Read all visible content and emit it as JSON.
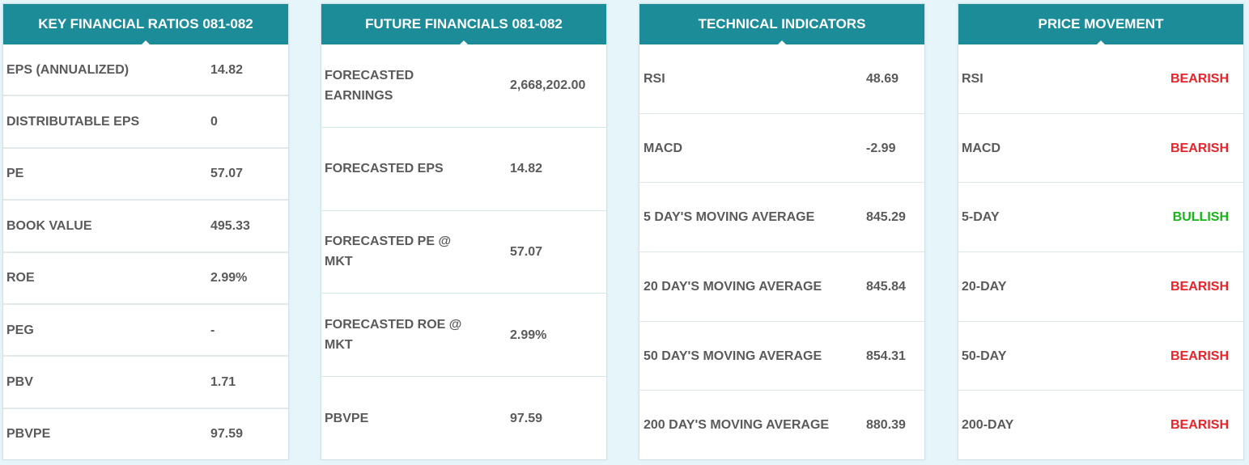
{
  "key_ratios": {
    "title": "KEY FINANCIAL RATIOS 081-082",
    "rows": [
      {
        "label": "EPS (ANNUALIZED)",
        "value": "14.82"
      },
      {
        "label": "DISTRIBUTABLE EPS",
        "value": "0"
      },
      {
        "label": "PE",
        "value": "57.07"
      },
      {
        "label": "BOOK VALUE",
        "value": "495.33"
      },
      {
        "label": "ROE",
        "value": "2.99%"
      },
      {
        "label": "PEG",
        "value": "-"
      },
      {
        "label": "PBV",
        "value": "1.71"
      },
      {
        "label": "PBVPE",
        "value": "97.59"
      }
    ]
  },
  "future_financials": {
    "title": "FUTURE FINANCIALS 081-082",
    "rows": [
      {
        "label": "FORECASTED EARNINGS",
        "value": "2,668,202.00"
      },
      {
        "label": "FORECASTED EPS",
        "value": "14.82"
      },
      {
        "label": "FORECASTED PE @ MKT",
        "value": "57.07"
      },
      {
        "label": "FORECASTED ROE @ MKT",
        "value": "2.99%"
      },
      {
        "label": "PBVPE",
        "value": "97.59"
      }
    ]
  },
  "technical_indicators": {
    "title": "TECHNICAL INDICATORS",
    "rows": [
      {
        "label": "RSI",
        "value": "48.69"
      },
      {
        "label": "MACD",
        "value": "-2.99"
      },
      {
        "label": "5 DAY'S MOVING AVERAGE",
        "value": "845.29"
      },
      {
        "label": "20 DAY'S MOVING AVERAGE",
        "value": "845.84"
      },
      {
        "label": "50 DAY'S MOVING AVERAGE",
        "value": "854.31"
      },
      {
        "label": "200 DAY'S MOVING AVERAGE",
        "value": "880.39"
      }
    ]
  },
  "price_movement": {
    "title": "PRICE MOVEMENT",
    "rows": [
      {
        "label": "RSI",
        "value": "BEARISH"
      },
      {
        "label": "MACD",
        "value": "BEARISH"
      },
      {
        "label": "5-DAY",
        "value": "BULLISH"
      },
      {
        "label": "20-DAY",
        "value": "BEARISH"
      },
      {
        "label": "50-DAY",
        "value": "BEARISH"
      },
      {
        "label": "200-DAY",
        "value": "BEARISH"
      }
    ]
  },
  "colors": {
    "header_bg": "#1c8c99",
    "bearish": "#e8232a",
    "bullish": "#17b417"
  }
}
